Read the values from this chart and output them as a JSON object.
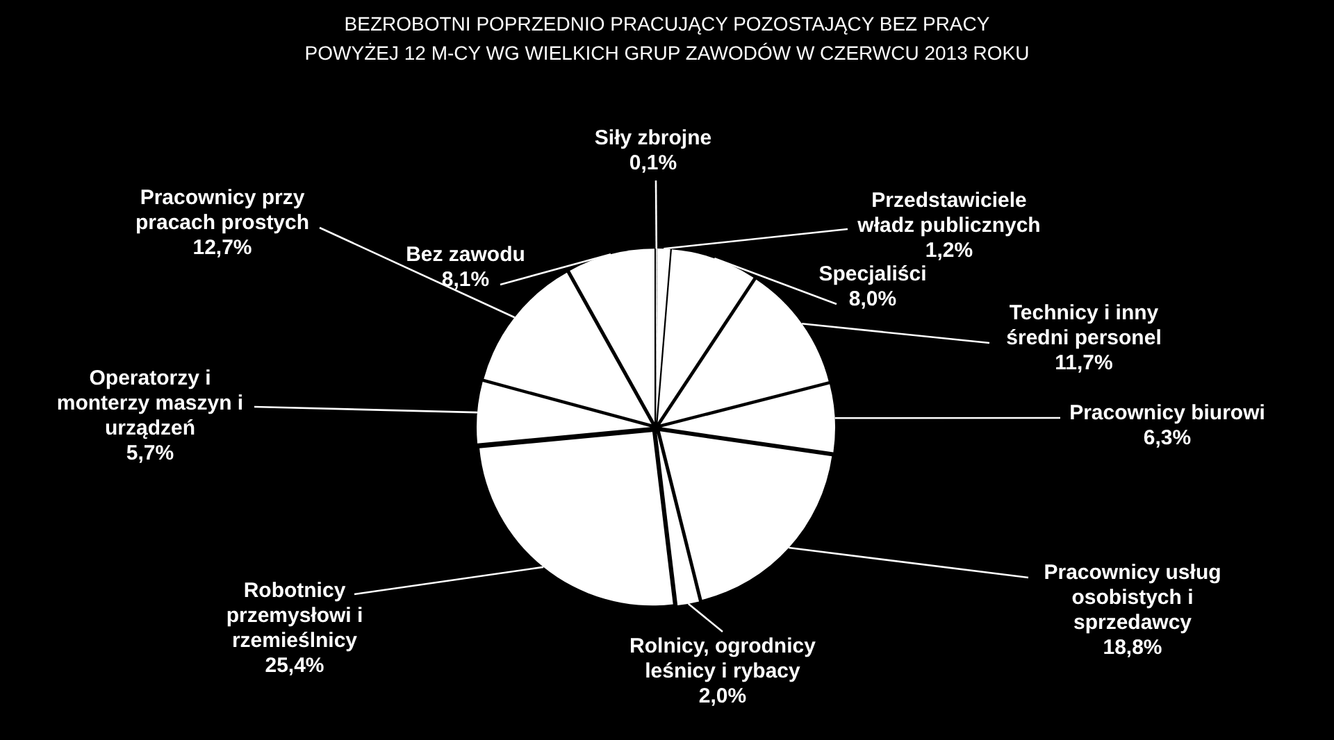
{
  "chart_data": {
    "type": "pie",
    "title": "BEZROBOTNI POPRZEDNIO PRACUJĄCY POZOSTAJĄCY BEZ PRACY POWYŻEJ 12 M-CY WG WIELKICH GRUP ZAWODÓW W CZERWCU 2013 ROKU",
    "categories": [
      "Siły zbrojne",
      "Przedstawiciele władz publicznych",
      "Specjaliści",
      "Technicy i inny średni personel",
      "Pracownicy biurowi",
      "Pracownicy usług osobistych i sprzedawcy",
      "Rolnicy, ogrodnicy leśnicy i rybacy",
      "Robotnicy przemysłowi i rzemieślnicy",
      "Operatorzy i monterzy maszyn i urządzeń",
      "Pracownicy przy pracach prostych",
      "Bez zawodu"
    ],
    "values": [
      0.1,
      1.2,
      8.0,
      11.7,
      6.3,
      18.8,
      2.0,
      25.4,
      5.7,
      12.7,
      8.1
    ],
    "colors": [
      "#ffffff",
      "#ffffff",
      "#ffffff",
      "#ffffff",
      "#ffffff",
      "#ffffff",
      "#ffffff",
      "#ffffff",
      "#ffffff",
      "#ffffff",
      "#ffffff"
    ],
    "value_labels": [
      "0,1%",
      "1,2%",
      "8,0%",
      "11,7%",
      "6,3%",
      "18,8%",
      "2,0%",
      "25,4%",
      "5,7%",
      "12,7%",
      "8,1%"
    ]
  }
}
